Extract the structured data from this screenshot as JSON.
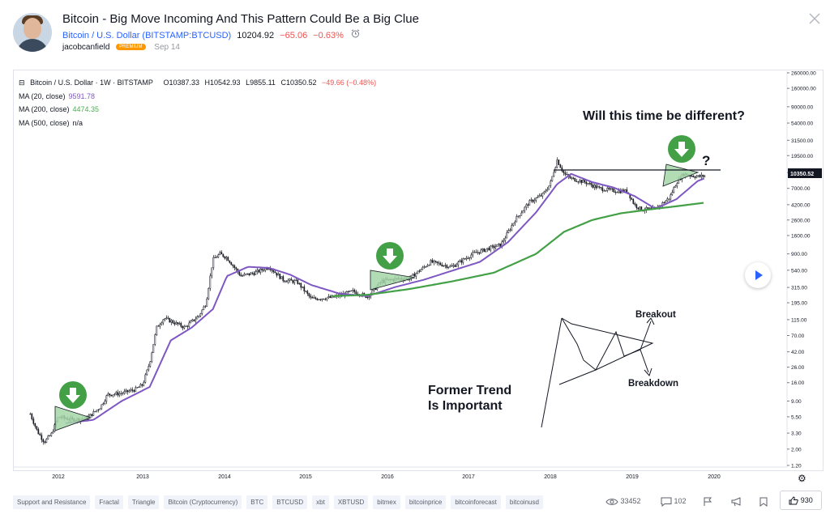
{
  "idea": {
    "title": "Bitcoin - Big Move Incoming And This Pattern Could Be a Big Clue",
    "symbol_link": "Bitcoin / U.S. Dollar (BITSTAMP:BTCUSD)",
    "price": "10204.92",
    "change": "−65.06",
    "change_pct": "−0.63%",
    "author": "jacobcanfield",
    "badge": "PREMIUM",
    "date": "Sep 14"
  },
  "legend": {
    "line1": {
      "symbol": "Bitcoin / U.S. Dollar · 1W · BITSTAMP",
      "open": "O10387.33",
      "high": "H10542.93",
      "low": "L9855.11",
      "close": "C10350.52",
      "change": "−49.66 (−0.48%)"
    },
    "ma20_label": "MA (20, close)",
    "ma20_value": "9591.78",
    "ma200_label": "MA (200, close)",
    "ma200_value": "4474.35",
    "ma500_label": "MA (500, close)",
    "ma500_value": "n/a"
  },
  "colors": {
    "accent": "#2962ff",
    "down": "#ef5350",
    "ma20": "#7e57c2",
    "ma200": "#43a047",
    "pattern_fill": "#a5d6a7",
    "arrow_badge": "#43a047",
    "badge": "#ff9800"
  },
  "annotations": {
    "headline": "Will this time be different?",
    "question": "?",
    "former_trend_line1": "Former Trend",
    "former_trend_line2": "Is Important",
    "breakout": "Breakout",
    "breakdown": "Breakdown"
  },
  "price_tag": "10350.52",
  "chart_data": {
    "type": "line",
    "title": "",
    "xlabel": "",
    "ylabel": "",
    "y_scale": "log",
    "ylim": [
      1.2,
      260000
    ],
    "x_ticks": [
      "2012",
      "2013",
      "2014",
      "2015",
      "2016",
      "2017",
      "2018",
      "2019",
      "2020"
    ],
    "y_ticks": [
      "260000.00",
      "160000.00",
      "90000.00",
      "54000.00",
      "31500.00",
      "19500.00",
      "11500.00",
      "7000.00",
      "4200.00",
      "2600.00",
      "1600.00",
      "900.00",
      "540.00",
      "315.00",
      "195.00",
      "115.00",
      "70.00",
      "42.00",
      "26.00",
      "16.00",
      "9.00",
      "5.50",
      "3.30",
      "2.00",
      "1.20"
    ],
    "series": [
      {
        "name": "",
        "x": [
          "2011-09",
          "2011-10",
          "2011-11",
          "2011-12",
          "2012-01",
          "2012-03",
          "2012-05",
          "2012-07",
          "2012-08",
          "2012-10",
          "2012-12",
          "2013-01",
          "2013-02",
          "2013-03",
          "2013-04",
          "2013-05",
          "2013-07",
          "2013-09",
          "2013-10",
          "2013-11",
          "2013-12",
          "2014-01",
          "2014-03",
          "2014-05",
          "2014-07",
          "2014-09",
          "2014-11",
          "2015-01",
          "2015-04",
          "2015-07",
          "2015-09",
          "2015-11",
          "2016-01",
          "2016-03",
          "2016-06",
          "2016-09",
          "2016-12",
          "2017-02",
          "2017-04",
          "2017-06",
          "2017-08",
          "2017-10",
          "2017-11",
          "2017-12",
          "2018-01",
          "2018-02",
          "2018-04",
          "2018-06",
          "2018-08",
          "2018-10",
          "2018-11",
          "2018-12",
          "2019-02",
          "2019-04",
          "2019-05",
          "2019-06",
          "2019-07",
          "2019-08",
          "2019-09"
        ],
        "values": [
          6,
          3.5,
          2.5,
          3.2,
          5.5,
          5,
          5.2,
          7.5,
          11,
          11.5,
          13,
          15,
          30,
          90,
          120,
          110,
          90,
          130,
          190,
          750,
          900,
          800,
          450,
          500,
          600,
          400,
          375,
          220,
          230,
          280,
          235,
          380,
          410,
          420,
          700,
          600,
          900,
          1050,
          1200,
          2600,
          4500,
          5800,
          8000,
          17000,
          11000,
          9500,
          8500,
          7000,
          6500,
          6400,
          4200,
          3600,
          3700,
          5200,
          8500,
          11000,
          10500,
          10100,
          10350
        ]
      },
      {
        "name": "",
        "x": [
          "2012-02",
          "2012-06",
          "2012-10",
          "2013-02",
          "2013-05",
          "2013-08",
          "2013-11",
          "2014-01",
          "2014-04",
          "2014-07",
          "2014-10",
          "2015-01",
          "2015-05",
          "2015-09",
          "2016-01",
          "2016-05",
          "2016-09",
          "2017-01",
          "2017-05",
          "2017-09",
          "2017-12",
          "2018-02",
          "2018-05",
          "2018-08",
          "2018-11",
          "2019-02",
          "2019-05",
          "2019-08",
          "2019-09"
        ],
        "values": [
          4.5,
          5,
          9,
          14,
          60,
          90,
          160,
          450,
          600,
          580,
          470,
          340,
          260,
          240,
          320,
          400,
          530,
          700,
          1300,
          3300,
          8000,
          11000,
          8500,
          7200,
          5500,
          3700,
          5000,
          8800,
          9600
        ]
      },
      {
        "name": "",
        "x": [
          "2015-04",
          "2015-09",
          "2016-03",
          "2016-09",
          "2017-03",
          "2017-09",
          "2018-01",
          "2018-05",
          "2018-09",
          "2019-01",
          "2019-05",
          "2019-09"
        ],
        "values": [
          240,
          250,
          300,
          380,
          500,
          900,
          1800,
          2600,
          3200,
          3600,
          4000,
          4470
        ]
      }
    ],
    "y_axis_label_values": [
      "260000.00"
    ],
    "grid": false,
    "legend_position": "top-left"
  },
  "tags": [
    "Support and Resistance",
    "Fractal",
    "Triangle",
    "Bitcoin (Cryptocurrency)",
    "BTC",
    "BTCUSD",
    "xbt",
    "XBTUSD",
    "bitmex",
    "bitcoinprice",
    "bitcoinforecast",
    "bitcoinusd"
  ],
  "stats": {
    "views": "33452",
    "comments": "102",
    "likes": "930"
  }
}
